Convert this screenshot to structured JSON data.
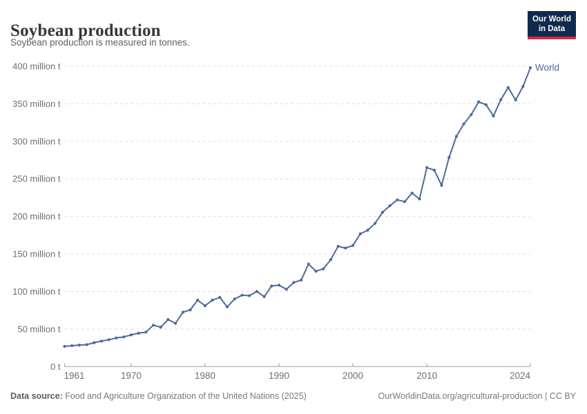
{
  "header": {
    "title": "Soybean production",
    "subtitle": "Soybean production is measured in tonnes.",
    "logo": {
      "line1": "Our World",
      "line2": "in Data"
    }
  },
  "chart_data": {
    "type": "line",
    "title": "Soybean production",
    "unit": "tonnes",
    "xlim": [
      1961,
      2024
    ],
    "ylim": [
      0,
      400
    ],
    "grid": "horizontal-dashed",
    "legend": "end-of-line-label",
    "colors": {
      "series": "#4C6A9C",
      "gridline": "#dcdcdc",
      "axis": "#a0a0a0",
      "tick_label": "#6e6e6e"
    },
    "yticks": [
      {
        "value": 0,
        "label": "0 t"
      },
      {
        "value": 50,
        "label": "50 million t"
      },
      {
        "value": 100,
        "label": "100 million t"
      },
      {
        "value": 150,
        "label": "150 million t"
      },
      {
        "value": 200,
        "label": "200 million t"
      },
      {
        "value": 250,
        "label": "250 million t"
      },
      {
        "value": 300,
        "label": "300 million t"
      },
      {
        "value": 350,
        "label": "350 million t"
      },
      {
        "value": 400,
        "label": "400 million t"
      }
    ],
    "xticks": [
      {
        "value": 1961,
        "label": "1961"
      },
      {
        "value": 1970,
        "label": "1970"
      },
      {
        "value": 1980,
        "label": "1980"
      },
      {
        "value": 1990,
        "label": "1990"
      },
      {
        "value": 2000,
        "label": "2000"
      },
      {
        "value": 2010,
        "label": "2010"
      },
      {
        "value": 2024,
        "label": "2024"
      }
    ],
    "x": [
      1961,
      1962,
      1963,
      1964,
      1965,
      1966,
      1967,
      1968,
      1969,
      1970,
      1971,
      1972,
      1973,
      1974,
      1975,
      1976,
      1977,
      1978,
      1979,
      1980,
      1981,
      1982,
      1983,
      1984,
      1985,
      1986,
      1987,
      1988,
      1989,
      1990,
      1991,
      1992,
      1993,
      1994,
      1995,
      1996,
      1997,
      1998,
      1999,
      2000,
      2001,
      2002,
      2003,
      2004,
      2005,
      2006,
      2007,
      2008,
      2009,
      2010,
      2011,
      2012,
      2013,
      2014,
      2015,
      2016,
      2017,
      2018,
      2019,
      2020,
      2021,
      2022,
      2023,
      2024
    ],
    "series": [
      {
        "name": "World",
        "color": "#4C6A9C",
        "values": [
          26.9,
          27.8,
          28.6,
          29.2,
          31.8,
          33.9,
          35.8,
          38.1,
          39.5,
          42.1,
          44.4,
          45.9,
          55.1,
          52.4,
          62.6,
          57.6,
          72.4,
          75.5,
          88.5,
          81.0,
          88.5,
          92.1,
          79.5,
          89.9,
          95.1,
          94.4,
          100.0,
          93.1,
          107.3,
          108.5,
          102.9,
          112.0,
          115.2,
          136.5,
          127.0,
          130.2,
          142.3,
          160.1,
          157.8,
          161.3,
          176.8,
          181.6,
          190.7,
          205.5,
          214.3,
          222.0,
          219.6,
          231.0,
          223.2,
          265.0,
          261.6,
          241.4,
          278.3,
          306.6,
          323.2,
          335.5,
          352.6,
          348.7,
          333.7,
          355.4,
          371.7,
          355.0,
          373.0,
          398.0
        ]
      }
    ]
  },
  "footer": {
    "source_label": "Data source:",
    "source_text": "Food and Agriculture Organization of the United Nations (2025)",
    "note": "OurWorldinData.org/agricultural-production | CC BY"
  }
}
